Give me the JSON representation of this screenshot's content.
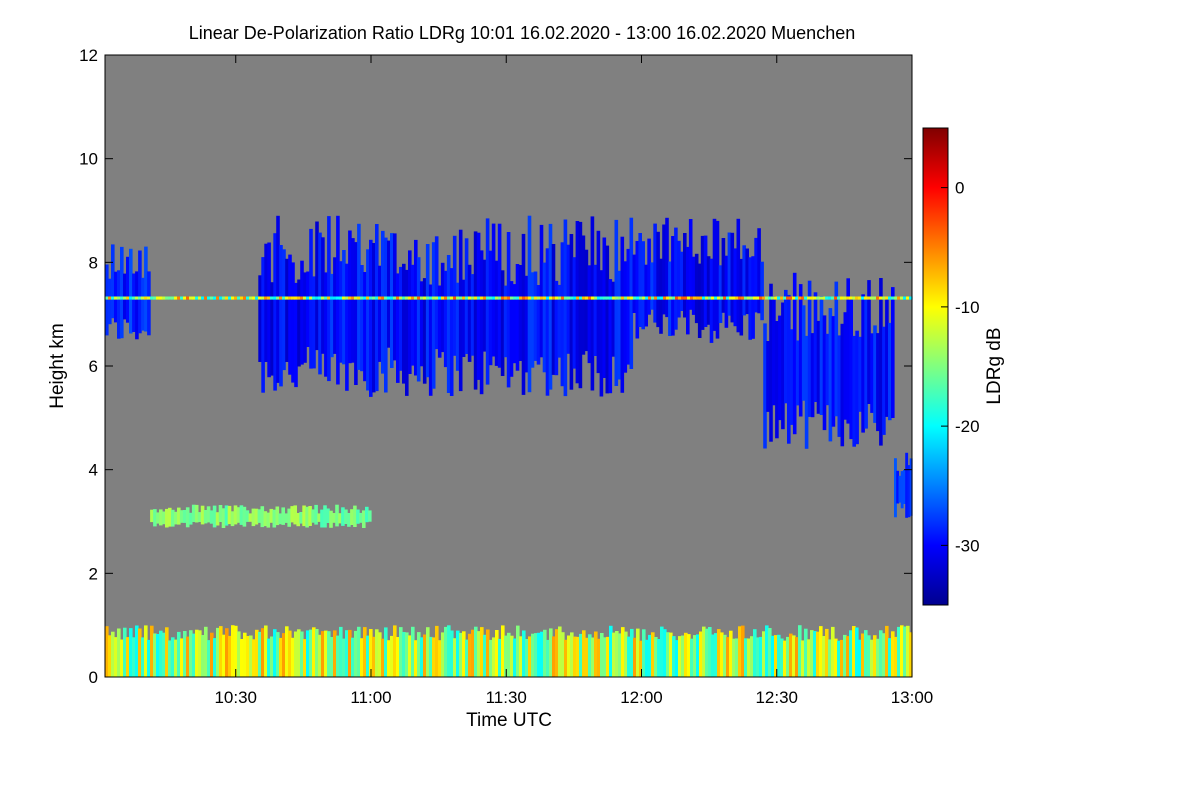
{
  "chart_data": {
    "type": "heatmap",
    "title": "Linear De-Polarization Ratio LDRg   10:01 16.02.2020 - 13:00 16.02.2020 Muenchen",
    "xlabel": "Time UTC",
    "ylabel": "Height km",
    "colorbar_label": "LDRg dB",
    "x_range_minutes_utc": [
      601,
      780
    ],
    "x_ticks": [
      {
        "label": "10:30",
        "minutes": 630
      },
      {
        "label": "11:00",
        "minutes": 660
      },
      {
        "label": "11:30",
        "minutes": 690
      },
      {
        "label": "12:00",
        "minutes": 720
      },
      {
        "label": "12:30",
        "minutes": 750
      },
      {
        "label": "13:00",
        "minutes": 780
      }
    ],
    "y_range_km": [
      0,
      12
    ],
    "y_ticks": [
      0,
      2,
      4,
      6,
      8,
      10,
      12
    ],
    "color_range_db": [
      -35,
      5
    ],
    "colorbar_ticks": [
      0,
      -10,
      -20,
      -30
    ],
    "background_value_color": "#808080",
    "colormap": [
      "#00008f",
      "#0000ff",
      "#0080ff",
      "#00ffff",
      "#80ff80",
      "#ffff00",
      "#ff8000",
      "#ff0000",
      "#800000"
    ],
    "features": [
      {
        "name": "cirrus cloud early",
        "t_start": 601,
        "t_end": 611,
        "h_bottom": 6.3,
        "h_top": 8.6,
        "ldr_db": -29
      },
      {
        "name": "cirrus cloud main",
        "t_start": 635,
        "t_end": 718,
        "h_bottom": 5.2,
        "h_top": 9.1,
        "ldr_db": -30
      },
      {
        "name": "cirrus fall streaks",
        "t_start": 718,
        "t_end": 747,
        "h_bottom": 6.3,
        "h_top": 9.0,
        "ldr_db": -30
      },
      {
        "name": "cirrus cloud late",
        "t_start": 747,
        "t_end": 776,
        "h_bottom": 4.2,
        "h_top": 8.0,
        "ldr_db": -30
      },
      {
        "name": "low cloud at end",
        "t_start": 776,
        "t_end": 780,
        "h_bottom": 3.0,
        "h_top": 4.4,
        "ldr_db": -29
      },
      {
        "name": "artifact line",
        "t_start": 601,
        "t_end": 780,
        "h_bottom": 7.28,
        "h_top": 7.34,
        "ldr_db": -12
      },
      {
        "name": "thin layer",
        "t_start": 611,
        "t_end": 660,
        "h_bottom": 2.85,
        "h_top": 3.35,
        "ldr_db": -15
      },
      {
        "name": "boundary layer",
        "t_start": 601,
        "t_end": 780,
        "h_bottom": 0.0,
        "h_top": 1.0,
        "ldr_db": -13
      }
    ]
  }
}
